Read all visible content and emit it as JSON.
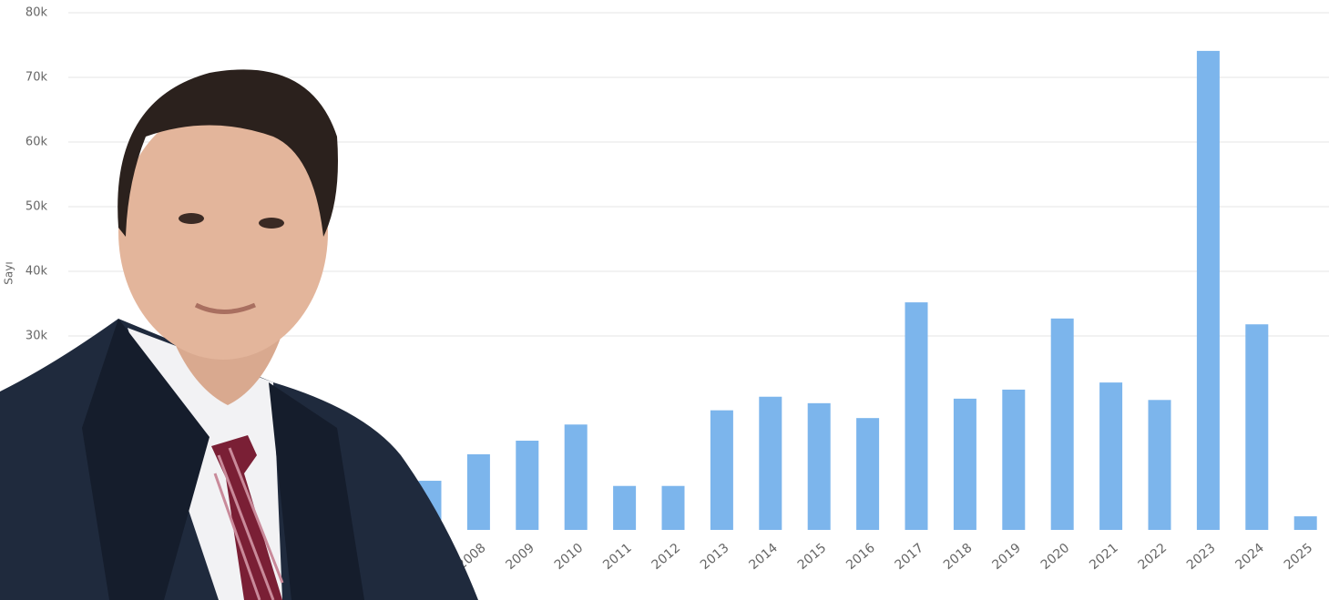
{
  "chart_data": {
    "type": "bar",
    "y_label": "Sayı",
    "categories": [
      null,
      "2008",
      "2009",
      "2010",
      "2011",
      "2012",
      "2013",
      "2014",
      "2015",
      "2016",
      "2017",
      "2018",
      "2019",
      "2020",
      "2021",
      "2022",
      "2023",
      "2024",
      "2025"
    ],
    "values": [
      7600,
      11700,
      13800,
      16300,
      6800,
      6800,
      18500,
      20600,
      19600,
      17300,
      35200,
      20300,
      21700,
      32700,
      22800,
      20100,
      74100,
      31800,
      2100
    ],
    "color": "#7cb5ec",
    "ylim": [
      0,
      80000
    ],
    "yticks": [
      {
        "value": 30000,
        "label": "30k"
      },
      {
        "value": 40000,
        "label": "40k"
      },
      {
        "value": 50000,
        "label": "50k"
      },
      {
        "value": 60000,
        "label": "60k"
      },
      {
        "value": 70000,
        "label": "70k"
      },
      {
        "value": 80000,
        "label": "80k"
      }
    ],
    "grid": true
  }
}
